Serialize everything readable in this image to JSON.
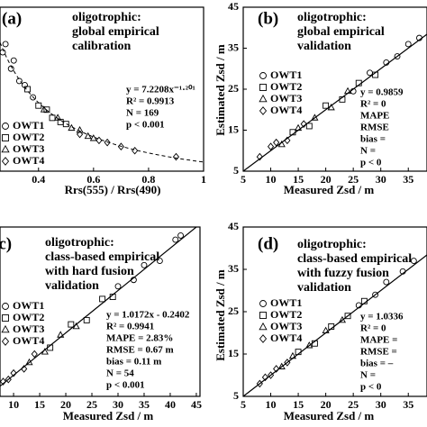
{
  "chart_data": [
    {
      "type": "scatter",
      "panel_label": "(a)",
      "title_lines": [
        "oligotrophic:",
        "global empirical",
        "calibration"
      ],
      "stats": [
        "y = 7.2208x⁻¹·²⁰¹",
        "R² = 0.9913",
        "N = 169",
        "p < 0.001"
      ],
      "xlabel": "Rrs(555) / Rrs(490)",
      "xlim": [
        0.26,
        1.0
      ],
      "ylim": [
        5,
        45
      ],
      "xticks": [
        0.4,
        0.6,
        0.8,
        1
      ],
      "curve": {
        "coefficient": 7.2208,
        "exponent": -1.201
      },
      "series": [
        {
          "name": "OWT1",
          "marker": "circle",
          "color": "#000",
          "x": [
            0.27,
            0.28,
            0.3,
            0.31,
            0.33,
            0.35,
            0.38
          ],
          "values": [
            34,
            36,
            30,
            32,
            27,
            26,
            23
          ]
        },
        {
          "name": "OWT2",
          "marker": "square",
          "color": "#000",
          "x": [
            0.36,
            0.4,
            0.43,
            0.45,
            0.48,
            0.5
          ],
          "values": [
            25,
            21,
            20,
            18,
            17,
            16.5
          ]
        },
        {
          "name": "OWT3",
          "marker": "triangle",
          "color": "#000",
          "x": [
            0.42,
            0.47,
            0.52,
            0.55,
            0.58,
            0.6
          ],
          "values": [
            20,
            18,
            15.5,
            15,
            13.5,
            13
          ]
        },
        {
          "name": "OWT4",
          "marker": "diamond",
          "color": "#000",
          "x": [
            0.55,
            0.62,
            0.65,
            0.7,
            0.75,
            0.9
          ],
          "values": [
            14,
            12.5,
            12,
            11,
            10,
            8.5
          ]
        }
      ]
    },
    {
      "type": "scatter",
      "panel_label": "(b)",
      "title_lines": [
        "oligotrophic:",
        "global empirical",
        "validation"
      ],
      "stats": [
        "y = 0.9859",
        "R² = 0",
        "MAPE",
        "RMSE",
        "bias =",
        "N =",
        "p < 0"
      ],
      "xlabel": "Measured Zsd / m",
      "ylabel": "Estimated Zsd / m",
      "xlim": [
        5,
        38.4
      ],
      "ylim": [
        5,
        45
      ],
      "xticks": [
        5,
        10,
        15,
        20,
        25,
        30,
        35
      ],
      "yticks": [
        5,
        15,
        25,
        35,
        45
      ],
      "reference_line": true,
      "series": [
        {
          "name": "OWT1",
          "marker": "circle",
          "color": "#000",
          "x": [
            25,
            28,
            31,
            33,
            35,
            37
          ],
          "values": [
            24.5,
            29,
            31.5,
            33,
            36,
            37.5
          ]
        },
        {
          "name": "OWT2",
          "marker": "square",
          "color": "#000",
          "x": [
            14,
            17,
            20,
            23,
            26,
            29
          ],
          "values": [
            14.5,
            16,
            21,
            22.5,
            26.5,
            28.5
          ]
        },
        {
          "name": "OWT3",
          "marker": "triangle",
          "color": "#000",
          "x": [
            12,
            15,
            18,
            21,
            24
          ],
          "values": [
            11.5,
            15.5,
            18,
            20.5,
            24.5
          ]
        },
        {
          "name": "OWT4",
          "marker": "diamond",
          "color": "#000",
          "x": [
            8,
            10,
            11,
            13,
            16
          ],
          "values": [
            8.5,
            11,
            12,
            12.5,
            16.5
          ]
        }
      ]
    },
    {
      "type": "scatter",
      "panel_label": "(c)",
      "title_lines": [
        "oligotrophic:",
        "class-based empirical",
        "with hard fusion",
        "validation"
      ],
      "stats": [
        "y = 1.0172x - 0.2402",
        "R² = 0.9941",
        "MAPE = 2.83%",
        "RMSE = 0.67 m",
        "bias = 0.11 m",
        "N = 54",
        "p < 0.001"
      ],
      "xlabel": "Measured Zsd / m",
      "xlim": [
        7.4,
        45.7
      ],
      "ylim": [
        5,
        45
      ],
      "xticks": [
        10,
        15,
        20,
        25,
        30,
        35,
        40,
        45
      ],
      "reference_line": true,
      "series": [
        {
          "name": "OWT1",
          "marker": "circle",
          "color": "#000",
          "x": [
            30,
            33,
            35,
            38,
            41,
            42
          ],
          "values": [
            31,
            32.5,
            36,
            37,
            42,
            43
          ]
        },
        {
          "name": "OWT2",
          "marker": "square",
          "color": "#000",
          "x": [
            17,
            21,
            24,
            27,
            29
          ],
          "values": [
            16.5,
            22,
            23,
            28,
            28.5
          ]
        },
        {
          "name": "OWT3",
          "marker": "triangle",
          "color": "#000",
          "x": [
            13,
            16,
            19,
            22
          ],
          "values": [
            13,
            15.5,
            19.5,
            21.5
          ]
        },
        {
          "name": "OWT4",
          "marker": "diamond",
          "color": "#000",
          "x": [
            8,
            9,
            10,
            12,
            14
          ],
          "values": [
            8.5,
            9,
            10.5,
            11.5,
            15
          ]
        }
      ]
    },
    {
      "type": "scatter",
      "panel_label": "(d)",
      "title_lines": [
        "oligotrophic:",
        "class-based empirical",
        "with fuzzy fusion",
        "validation"
      ],
      "stats": [
        "y = 1.0336",
        "R² = 0",
        "MAPE =",
        "RMSE =",
        "bias = –",
        "N =",
        "p < 0"
      ],
      "xlabel": "Measured Zsd / m",
      "ylabel": "Estimated Zsd / m",
      "xlim": [
        5,
        38.4
      ],
      "ylim": [
        5,
        45
      ],
      "xticks": [
        5,
        10,
        15,
        20,
        25,
        30,
        35
      ],
      "yticks": [
        5,
        15,
        25,
        35,
        45
      ],
      "reference_line": true,
      "series": [
        {
          "name": "OWT1",
          "marker": "circle",
          "color": "#000",
          "x": [
            26,
            29,
            31,
            34,
            36
          ],
          "values": [
            26.5,
            29,
            32,
            34.5,
            37
          ]
        },
        {
          "name": "OWT2",
          "marker": "square",
          "color": "#000",
          "x": [
            15,
            18,
            21,
            24,
            27
          ],
          "values": [
            15.5,
            17.5,
            21.5,
            24,
            27.5
          ]
        },
        {
          "name": "OWT3",
          "marker": "triangle",
          "color": "#000",
          "x": [
            12,
            14,
            17,
            20,
            23
          ],
          "values": [
            12,
            14.5,
            17,
            20.5,
            23
          ]
        },
        {
          "name": "OWT4",
          "marker": "diamond",
          "color": "#000",
          "x": [
            8,
            9,
            10,
            11,
            13
          ],
          "values": [
            8,
            9.5,
            10,
            11.5,
            13
          ]
        }
      ]
    }
  ]
}
